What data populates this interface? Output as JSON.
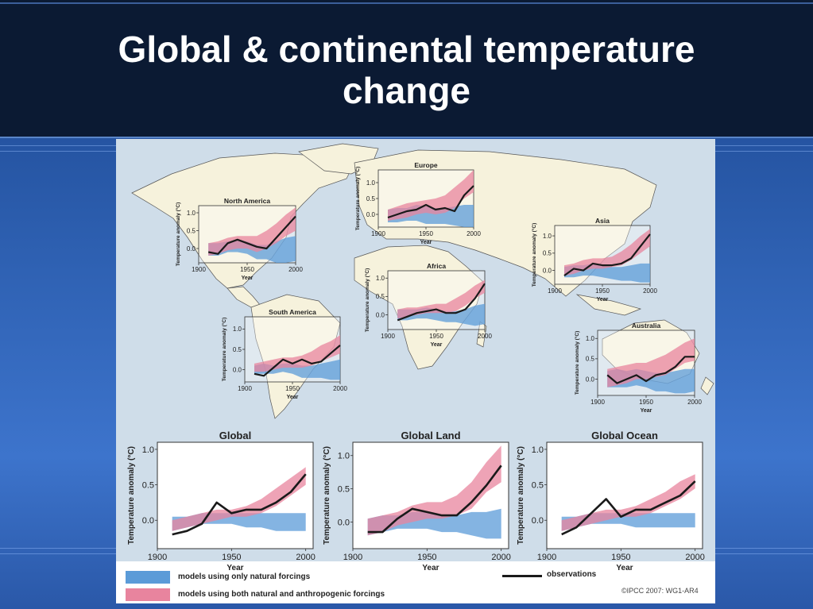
{
  "title": "Global & continental temperature\nchange",
  "axis_text": {
    "xlabel": "Year",
    "ylabel": "Temperature anomaly (°C)"
  },
  "legend": {
    "natural": "models using only natural forcings",
    "both": "models using both natural and anthropogenic forcings",
    "observations": "observations"
  },
  "credit": "©IPCC  2007: WG1-AR4",
  "colors": {
    "natural_band": "#5b9bd8",
    "both_band": "#e8849e",
    "observations": "#1a1a1a",
    "map_ocean": "#cfdde9",
    "map_land": "#f6f2dc"
  },
  "chart_data": [
    {
      "type": "area",
      "title": "North America",
      "x": [
        1910,
        1920,
        1930,
        1940,
        1950,
        1960,
        1970,
        1980,
        1990,
        2000
      ],
      "observations": [
        -0.1,
        -0.15,
        0.15,
        0.25,
        0.15,
        0.05,
        0.0,
        0.3,
        0.6,
        0.9
      ],
      "natural": {
        "lower": [
          -0.2,
          -0.2,
          -0.1,
          -0.1,
          -0.15,
          -0.3,
          -0.3,
          -0.4,
          -0.4,
          -0.35
        ],
        "upper": [
          0.15,
          0.15,
          0.2,
          0.25,
          0.2,
          0.1,
          0.1,
          0.2,
          0.3,
          0.35
        ]
      },
      "both": {
        "lower": [
          -0.2,
          -0.15,
          -0.05,
          0.0,
          0.0,
          -0.1,
          0.0,
          0.15,
          0.35,
          0.5
        ],
        "upper": [
          0.15,
          0.2,
          0.3,
          0.35,
          0.35,
          0.35,
          0.5,
          0.7,
          0.95,
          1.15
        ]
      },
      "xlim": [
        1900,
        2000
      ],
      "ylim": [
        -0.4,
        1.2
      ],
      "yticks": [
        "0.0",
        "0.5",
        "1.0"
      ],
      "xticks": [
        "1900",
        "1950",
        "2000"
      ]
    },
    {
      "type": "area",
      "title": "Europe",
      "x": [
        1910,
        1920,
        1930,
        1940,
        1950,
        1960,
        1970,
        1980,
        1990,
        2000
      ],
      "observations": [
        -0.1,
        0.0,
        0.1,
        0.15,
        0.3,
        0.15,
        0.2,
        0.1,
        0.6,
        0.9
      ],
      "natural": {
        "lower": [
          -0.25,
          -0.25,
          -0.2,
          -0.2,
          -0.3,
          -0.3,
          -0.3,
          -0.35,
          -0.4,
          -0.4
        ],
        "upper": [
          0.15,
          0.2,
          0.2,
          0.3,
          0.25,
          0.2,
          0.2,
          0.25,
          0.3,
          0.3
        ],
        "x": [
          1910,
          1920,
          1930,
          1940,
          1950,
          1960,
          1970,
          1980,
          1990,
          2000
        ]
      },
      "both": {
        "lower": [
          -0.2,
          -0.15,
          -0.1,
          0.0,
          0.05,
          0.0,
          0.05,
          0.2,
          0.5,
          0.7
        ],
        "upper": [
          0.15,
          0.25,
          0.35,
          0.4,
          0.45,
          0.5,
          0.6,
          0.85,
          1.1,
          1.4
        ]
      },
      "xlim": [
        1900,
        2000
      ],
      "ylim": [
        -0.4,
        1.4
      ],
      "yticks": [
        "0.0",
        "0.5",
        "1.0"
      ],
      "xticks": [
        "1900",
        "1950",
        "2000"
      ]
    },
    {
      "type": "area",
      "title": "Asia",
      "x": [
        1910,
        1920,
        1930,
        1940,
        1950,
        1960,
        1970,
        1980,
        1990,
        2000
      ],
      "observations": [
        -0.15,
        0.05,
        0.0,
        0.2,
        0.15,
        0.15,
        0.2,
        0.35,
        0.7,
        1.05
      ],
      "natural": {
        "lower": [
          -0.2,
          -0.2,
          -0.15,
          -0.15,
          -0.2,
          -0.25,
          -0.3,
          -0.3,
          -0.35,
          -0.35
        ],
        "upper": [
          0.1,
          0.15,
          0.15,
          0.2,
          0.15,
          0.1,
          0.1,
          0.15,
          0.2,
          0.2
        ]
      },
      "both": {
        "lower": [
          -0.15,
          -0.1,
          0.0,
          0.05,
          0.05,
          0.1,
          0.15,
          0.3,
          0.5,
          0.7
        ],
        "upper": [
          0.15,
          0.2,
          0.3,
          0.35,
          0.35,
          0.4,
          0.55,
          0.75,
          1.0,
          1.2
        ]
      },
      "xlim": [
        1900,
        2000
      ],
      "ylim": [
        -0.4,
        1.3
      ],
      "yticks": [
        "0.0",
        "0.5",
        "1.0"
      ],
      "xticks": [
        "1900",
        "1950",
        "2000"
      ]
    },
    {
      "type": "area",
      "title": "Africa",
      "x": [
        1910,
        1920,
        1930,
        1940,
        1950,
        1960,
        1970,
        1980,
        1990,
        2000
      ],
      "observations": [
        -0.15,
        -0.05,
        0.05,
        0.1,
        0.15,
        0.05,
        0.05,
        0.15,
        0.45,
        0.85
      ],
      "natural": {
        "lower": [
          -0.15,
          -0.15,
          -0.1,
          -0.1,
          -0.15,
          -0.2,
          -0.2,
          -0.25,
          -0.3,
          -0.25
        ],
        "upper": [
          0.15,
          0.15,
          0.15,
          0.2,
          0.15,
          0.1,
          0.1,
          0.15,
          0.25,
          0.3
        ]
      },
      "both": {
        "lower": [
          -0.1,
          -0.05,
          0.0,
          0.05,
          0.05,
          0.05,
          0.1,
          0.25,
          0.45,
          0.6
        ],
        "upper": [
          0.15,
          0.2,
          0.2,
          0.25,
          0.3,
          0.3,
          0.45,
          0.6,
          0.8,
          0.95
        ]
      },
      "xlim": [
        1900,
        2000
      ],
      "ylim": [
        -0.4,
        1.2
      ],
      "yticks": [
        "0.0",
        "0.5",
        "1.0"
      ],
      "xticks": [
        "1900",
        "1950",
        "2000"
      ]
    },
    {
      "type": "area",
      "title": "South America",
      "x": [
        1910,
        1920,
        1930,
        1940,
        1950,
        1960,
        1970,
        1980,
        1990,
        2000
      ],
      "observations": [
        -0.1,
        -0.15,
        0.05,
        0.25,
        0.15,
        0.25,
        0.15,
        0.2,
        0.4,
        0.6
      ],
      "natural": {
        "lower": [
          -0.1,
          -0.1,
          -0.1,
          -0.05,
          -0.1,
          -0.2,
          -0.2,
          -0.2,
          -0.25,
          -0.25
        ],
        "upper": [
          0.1,
          0.15,
          0.1,
          0.15,
          0.15,
          0.1,
          0.1,
          0.15,
          0.2,
          0.25
        ]
      },
      "both": {
        "lower": [
          -0.05,
          -0.05,
          0.0,
          0.05,
          0.05,
          0.05,
          0.1,
          0.2,
          0.3,
          0.4
        ],
        "upper": [
          0.15,
          0.2,
          0.25,
          0.3,
          0.3,
          0.35,
          0.45,
          0.6,
          0.7,
          0.85
        ]
      },
      "xlim": [
        1900,
        2000
      ],
      "ylim": [
        -0.3,
        1.3
      ],
      "yticks": [
        "0.0",
        "0.5",
        "1.0"
      ],
      "xticks": [
        "1900",
        "1950",
        "2000"
      ]
    },
    {
      "type": "area",
      "title": "Australia",
      "x": [
        1910,
        1920,
        1930,
        1940,
        1950,
        1960,
        1970,
        1980,
        1990,
        2000
      ],
      "observations": [
        0.1,
        -0.1,
        0.0,
        0.1,
        -0.05,
        0.1,
        0.15,
        0.3,
        0.55,
        0.55
      ],
      "natural": {
        "lower": [
          -0.2,
          -0.2,
          -0.2,
          -0.15,
          -0.2,
          -0.3,
          -0.3,
          -0.35,
          -0.35,
          -0.3
        ],
        "upper": [
          0.2,
          0.25,
          0.2,
          0.25,
          0.2,
          0.15,
          0.15,
          0.2,
          0.25,
          0.25
        ]
      },
      "both": {
        "lower": [
          -0.2,
          -0.15,
          -0.1,
          0.0,
          0.0,
          0.05,
          0.1,
          0.25,
          0.4,
          0.45
        ],
        "upper": [
          0.25,
          0.3,
          0.35,
          0.4,
          0.4,
          0.5,
          0.6,
          0.75,
          0.9,
          1.0
        ]
      },
      "xlim": [
        1900,
        2000
      ],
      "ylim": [
        -0.4,
        1.2
      ],
      "yticks": [
        "0.0",
        "0.5",
        "1.0"
      ],
      "xticks": [
        "1900",
        "1950",
        "2000"
      ]
    },
    {
      "type": "area",
      "title": "Global",
      "x": [
        1910,
        1920,
        1930,
        1940,
        1950,
        1960,
        1970,
        1980,
        1990,
        2000
      ],
      "observations": [
        -0.2,
        -0.15,
        -0.05,
        0.25,
        0.1,
        0.15,
        0.15,
        0.25,
        0.4,
        0.65
      ],
      "natural": {
        "lower": [
          -0.15,
          -0.1,
          -0.05,
          -0.05,
          -0.05,
          -0.1,
          -0.1,
          -0.15,
          -0.15,
          -0.15
        ],
        "upper": [
          0.05,
          0.05,
          0.1,
          0.1,
          0.1,
          0.1,
          0.1,
          0.1,
          0.1,
          0.1
        ]
      },
      "both": {
        "lower": [
          -0.15,
          -0.1,
          -0.05,
          0.0,
          0.05,
          0.05,
          0.1,
          0.2,
          0.35,
          0.5
        ],
        "upper": [
          0.0,
          0.05,
          0.1,
          0.15,
          0.15,
          0.2,
          0.3,
          0.45,
          0.6,
          0.75
        ]
      },
      "xlim": [
        1900,
        2005
      ],
      "ylim": [
        -0.4,
        1.1
      ],
      "yticks": [
        "0.0",
        "0.5",
        "1.0"
      ],
      "xticks": [
        "1900",
        "1950",
        "2000"
      ]
    },
    {
      "type": "area",
      "title": "Global Land",
      "x": [
        1910,
        1920,
        1930,
        1940,
        1950,
        1960,
        1970,
        1980,
        1990,
        2000
      ],
      "observations": [
        -0.15,
        -0.15,
        0.05,
        0.2,
        0.15,
        0.1,
        0.1,
        0.3,
        0.55,
        0.85
      ],
      "natural": {
        "lower": [
          -0.2,
          -0.15,
          -0.1,
          -0.1,
          -0.1,
          -0.15,
          -0.15,
          -0.2,
          -0.25,
          -0.25
        ],
        "upper": [
          0.05,
          0.1,
          0.1,
          0.15,
          0.15,
          0.1,
          0.1,
          0.15,
          0.15,
          0.2
        ]
      },
      "both": {
        "lower": [
          -0.2,
          -0.15,
          -0.05,
          0.0,
          0.05,
          0.05,
          0.1,
          0.2,
          0.45,
          0.6
        ],
        "upper": [
          0.05,
          0.1,
          0.15,
          0.25,
          0.3,
          0.3,
          0.4,
          0.6,
          0.9,
          1.15
        ]
      },
      "xlim": [
        1900,
        2005
      ],
      "ylim": [
        -0.4,
        1.2
      ],
      "yticks": [
        "0.0",
        "0.5",
        "1.0"
      ],
      "xticks": [
        "1900",
        "1950",
        "2000"
      ]
    },
    {
      "type": "area",
      "title": "Global Ocean",
      "x": [
        1910,
        1920,
        1930,
        1940,
        1950,
        1960,
        1970,
        1980,
        1990,
        2000
      ],
      "observations": [
        -0.2,
        -0.1,
        0.1,
        0.3,
        0.05,
        0.15,
        0.15,
        0.25,
        0.35,
        0.55
      ],
      "natural": {
        "lower": [
          -0.15,
          -0.1,
          -0.05,
          -0.05,
          -0.05,
          -0.1,
          -0.1,
          -0.1,
          -0.1,
          -0.1
        ],
        "upper": [
          0.05,
          0.05,
          0.1,
          0.1,
          0.1,
          0.1,
          0.1,
          0.1,
          0.1,
          0.1
        ]
      },
      "both": {
        "lower": [
          -0.15,
          -0.1,
          -0.05,
          0.0,
          0.05,
          0.05,
          0.1,
          0.2,
          0.3,
          0.45
        ],
        "upper": [
          0.0,
          0.05,
          0.1,
          0.15,
          0.15,
          0.2,
          0.3,
          0.4,
          0.55,
          0.65
        ]
      },
      "xlim": [
        1900,
        2005
      ],
      "ylim": [
        -0.4,
        1.1
      ],
      "yticks": [
        "0.0",
        "0.5",
        "1.0"
      ],
      "xticks": [
        "1900",
        "1950",
        "2000"
      ]
    }
  ]
}
